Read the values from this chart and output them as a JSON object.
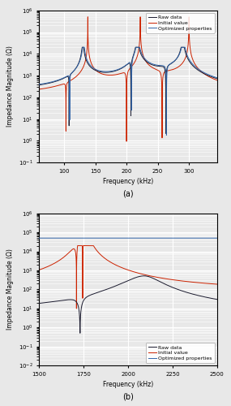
{
  "fig_width": 2.85,
  "fig_height": 5.0,
  "dpi": 100,
  "background_color": "#e8e8e8",
  "subplot_a": {
    "freq_start": 60,
    "freq_end": 345,
    "ylim_log": [
      -1,
      6
    ],
    "xlabel": "Frequency (kHz)",
    "ylabel": "Impedance Magnitude (Ω)",
    "label": "(a)",
    "xticks": [
      100,
      150,
      200,
      250,
      300
    ],
    "raw_color": "#1a1a2e",
    "initial_color": "#cc2200",
    "optimized_color": "#3366aa",
    "legend_labels": [
      "Raw data",
      "Initial value",
      "Optimized properties"
    ]
  },
  "subplot_b": {
    "freq_start": 1500,
    "freq_end": 2500,
    "ylim_log": [
      -2,
      6
    ],
    "xlabel": "Frequency (kHz)",
    "ylabel": "Impedance Magnitude (Ω)",
    "label": "(b)",
    "xticks": [
      1500,
      1750,
      2000,
      2250,
      2500
    ],
    "raw_color": "#1a1a2e",
    "initial_color": "#cc2200",
    "optimized_color": "#3366aa",
    "legend_labels": [
      "Raw data",
      "Initial value",
      "Optimized properties"
    ]
  }
}
